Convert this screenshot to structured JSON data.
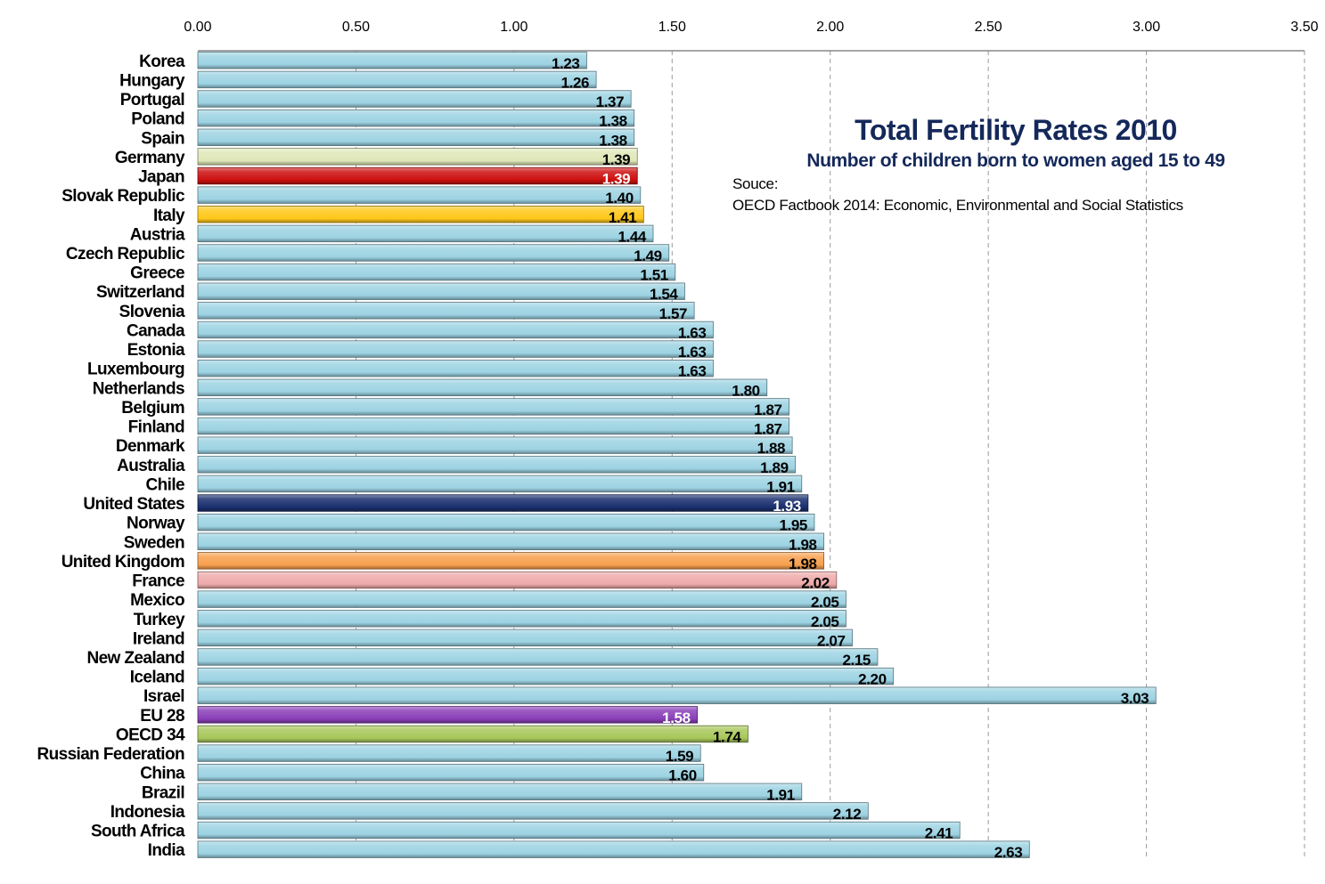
{
  "chart_data": {
    "type": "bar",
    "orientation": "horizontal",
    "title": "Total Fertility Rates 2010",
    "subtitle": "Number of children born to women aged 15 to 49",
    "source_label": "Souce:",
    "source_text": "OECD Factbook 2014: Economic, Environmental and Social Statistics",
    "xlabel": "",
    "ylabel": "",
    "xlim": [
      0,
      3.5
    ],
    "x_ticks": [
      "0.00",
      "0.50",
      "1.00",
      "1.50",
      "2.00",
      "2.50",
      "3.00",
      "3.50"
    ],
    "x_axis_position": "top",
    "grid": "vertical-dashed",
    "legend": "none",
    "categories": [
      "Korea",
      "Hungary",
      "Portugal",
      "Poland",
      "Spain",
      "Germany",
      "Japan",
      "Slovak Republic",
      "Italy",
      "Austria",
      "Czech Republic",
      "Greece",
      "Switzerland",
      "Slovenia",
      "Canada",
      "Estonia",
      "Luxembourg",
      "Netherlands",
      "Belgium",
      "Finland",
      "Denmark",
      "Australia",
      "Chile",
      "United States",
      "Norway",
      "Sweden",
      "United Kingdom",
      "France",
      "Mexico",
      "Turkey",
      "Ireland",
      "New Zealand",
      "Iceland",
      "Israel",
      "EU 28",
      "OECD 34",
      "Russian Federation",
      "China",
      "Brazil",
      "Indonesia",
      "South Africa",
      "India"
    ],
    "values": [
      1.23,
      1.26,
      1.37,
      1.38,
      1.38,
      1.39,
      1.39,
      1.4,
      1.41,
      1.44,
      1.49,
      1.51,
      1.54,
      1.57,
      1.63,
      1.63,
      1.63,
      1.8,
      1.87,
      1.87,
      1.88,
      1.89,
      1.91,
      1.93,
      1.95,
      1.98,
      1.98,
      2.02,
      2.05,
      2.05,
      2.07,
      2.15,
      2.2,
      3.03,
      1.58,
      1.74,
      1.59,
      1.6,
      1.91,
      2.12,
      2.41,
      2.63
    ],
    "value_labels": [
      "1.23",
      "1.26",
      "1.37",
      "1.38",
      "1.38",
      "1.39",
      "1.39",
      "1.40",
      "1.41",
      "1.44",
      "1.49",
      "1.51",
      "1.54",
      "1.57",
      "1.63",
      "1.63",
      "1.63",
      "1.80",
      "1.87",
      "1.87",
      "1.88",
      "1.89",
      "1.91",
      "1.93",
      "1.95",
      "1.98",
      "1.98",
      "2.02",
      "2.05",
      "2.05",
      "2.07",
      "2.15",
      "2.20",
      "3.03",
      "1.58",
      "1.74",
      "1.59",
      "1.60",
      "1.91",
      "2.12",
      "2.41",
      "2.63"
    ],
    "default_color": "#9dd3e3",
    "highlights": {
      "Germany": {
        "color": "#dfe8b8",
        "label_color": "#000000"
      },
      "Japan": {
        "color": "#cc1010",
        "label_color": "#ffffff"
      },
      "Italy": {
        "color": "#ffc81a",
        "label_color": "#000000"
      },
      "United States": {
        "color": "#1a2f6e",
        "label_color": "#ffffff"
      },
      "United Kingdom": {
        "color": "#f7a04e",
        "label_color": "#000000"
      },
      "France": {
        "color": "#eeaaaa",
        "label_color": "#000000"
      },
      "EU 28": {
        "color": "#8a3fb8",
        "label_color": "#ffffff"
      },
      "OECD 34": {
        "color": "#a8c85a",
        "label_color": "#000000"
      }
    }
  }
}
